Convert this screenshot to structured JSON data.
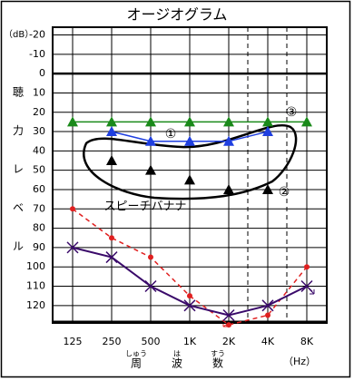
{
  "chart_data": {
    "type": "line",
    "title": "オージオグラム",
    "y_unit": "（dB）",
    "ylabel": [
      "聴",
      "力",
      "レ",
      "ベ",
      "ル"
    ],
    "xlabel": [
      "周",
      "波",
      "数"
    ],
    "xlabel_ruby": [
      "しゅう",
      "は",
      "すう"
    ],
    "x_unit": "（Hz）",
    "categories": [
      "125",
      "250",
      "500",
      "1K",
      "2K",
      "4K",
      "8K"
    ],
    "y_inverted": true,
    "ylim": [
      -24,
      129
    ],
    "yticks": [
      -20,
      -10,
      0,
      10,
      20,
      30,
      40,
      50,
      60,
      70,
      80,
      90,
      100,
      110,
      120
    ],
    "grid": true,
    "series": [
      {
        "color": "#1a8a1a",
        "marker": "triangle",
        "connected": true,
        "dashed": false,
        "values": [
          25,
          25,
          25,
          25,
          25,
          25,
          25
        ]
      },
      {
        "color": "#1f3fe0",
        "marker": "triangle",
        "connected": true,
        "dashed": false,
        "values": [
          null,
          30,
          35,
          35,
          35,
          30,
          null
        ]
      },
      {
        "color": "#000000",
        "marker": "triangle",
        "connected": false,
        "dashed": false,
        "values": [
          null,
          45,
          50,
          55,
          60,
          60,
          null
        ]
      },
      {
        "color": "#e02020",
        "marker": "circle",
        "connected": true,
        "dashed": true,
        "values": [
          70,
          85,
          95,
          115,
          130,
          125,
          100
        ]
      },
      {
        "color": "#3a0a6a",
        "marker": "cross",
        "connected": true,
        "dashed": false,
        "values": [
          90,
          95,
          110,
          120,
          125,
          120,
          110
        ]
      }
    ],
    "annotations": [
      "①",
      "②",
      "③",
      "スピーチバナナ"
    ]
  }
}
